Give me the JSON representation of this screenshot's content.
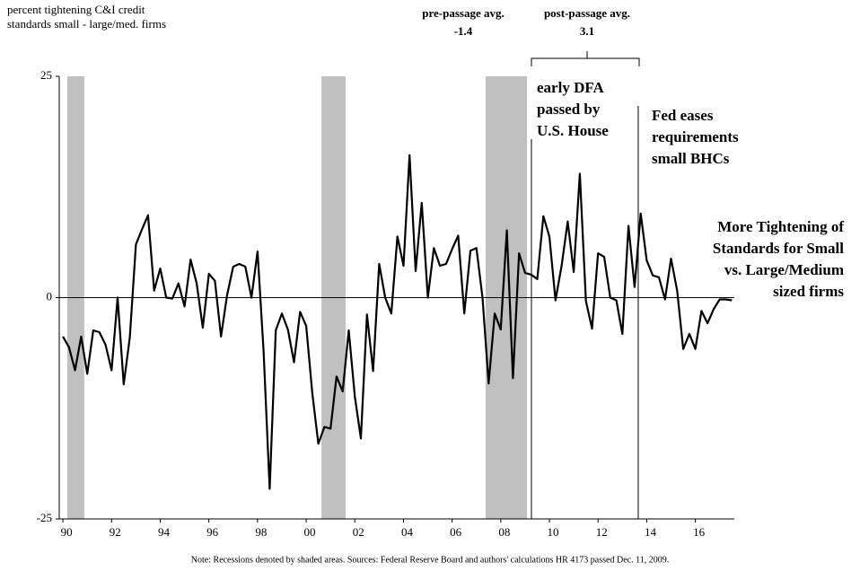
{
  "chart_data": {
    "type": "line",
    "y_label": [
      "percent tightening C&I credit",
      "standards small - large/med. firms"
    ],
    "note": "Note: Recessions denoted by shaded areas. Sources: Federal Reserve Board and authors' calculations   HR 4173 passed Dec. 11, 2009.",
    "annotations": [
      {
        "lines": [
          "pre-passage avg.",
          "-1.4"
        ]
      },
      {
        "lines": [
          "post-passage avg.",
          "3.1"
        ]
      },
      {
        "lines": [
          "early DFA",
          "passed by",
          "U.S. House"
        ]
      },
      {
        "lines": [
          "Fed eases",
          "requirements",
          "small BHCs"
        ]
      },
      {
        "lines": [
          "More Tightening of",
          "Standards for Small",
          "vs. Large/Medium",
          "sized firms"
        ]
      }
    ],
    "recessions": [
      [
        1990.18,
        1990.88
      ],
      [
        2000.63,
        2001.62
      ],
      [
        2007.38,
        2009.08
      ]
    ],
    "recession_color": "#c0c0c0",
    "vlines": [
      2009.26,
      2013.65
    ],
    "x": [
      1990,
      1990.25,
      1990.5,
      1990.75,
      1991,
      1991.25,
      1991.5,
      1991.75,
      1992,
      1992.25,
      1992.5,
      1992.75,
      1993,
      1993.25,
      1993.5,
      1993.75,
      1994,
      1994.25,
      1994.5,
      1994.75,
      1995,
      1995.25,
      1995.5,
      1995.75,
      1996,
      1996.25,
      1996.5,
      1996.75,
      1997,
      1997.25,
      1997.5,
      1997.75,
      1998,
      1998.25,
      1998.5,
      1998.75,
      1999,
      1999.25,
      1999.5,
      1999.75,
      2000,
      2000.25,
      2000.5,
      2000.75,
      2001,
      2001.25,
      2001.5,
      2001.75,
      2002,
      2002.25,
      2002.5,
      2002.75,
      2003,
      2003.25,
      2003.5,
      2003.75,
      2004,
      2004.25,
      2004.5,
      2004.75,
      2005,
      2005.25,
      2005.5,
      2005.75,
      2006,
      2006.25,
      2006.5,
      2006.75,
      2007,
      2007.25,
      2007.5,
      2007.75,
      2008,
      2008.25,
      2008.5,
      2008.75,
      2009,
      2009.25,
      2009.5,
      2009.75,
      2010,
      2010.25,
      2010.5,
      2010.75,
      2011,
      2011.25,
      2011.5,
      2011.75,
      2012,
      2012.25,
      2012.5,
      2012.75,
      2013,
      2013.25,
      2013.5,
      2013.75,
      2014,
      2014.25,
      2014.5,
      2014.75,
      2015,
      2015.25,
      2015.5,
      2015.75,
      2016,
      2016.25,
      2016.5,
      2016.75,
      2017,
      2017.25,
      2017.5
    ],
    "series": [
      {
        "name": "tightening",
        "color": "#000000",
        "values": [
          -4.4,
          -5.6,
          -8.2,
          -4.4,
          -8.6,
          -3.7,
          -3.9,
          -5.3,
          -8.2,
          0,
          -9.8,
          -4.5,
          6,
          7.7,
          9.3,
          0.8,
          3.3,
          0,
          -0.1,
          1.6,
          -1,
          4.3,
          1.6,
          -3.4,
          2.7,
          1.9,
          -4.4,
          0.3,
          3.5,
          3.8,
          3.5,
          0,
          5.2,
          -6,
          -21.6,
          -3.7,
          -1.8,
          -3.6,
          -7.3,
          -1.6,
          -3.2,
          -10.7,
          -16.5,
          -14.6,
          -14.8,
          -8.9,
          -10.6,
          -3.7,
          -11.2,
          -15.9,
          -1.9,
          -8.3,
          3.8,
          0,
          -1.8,
          6.9,
          3.6,
          16.1,
          3,
          10.7,
          0,
          5.6,
          3.6,
          3.8,
          5.5,
          7,
          -1.8,
          5.3,
          5.6,
          0,
          -9.7,
          -1.8,
          -3.6,
          7.6,
          -9.1,
          5,
          2.8,
          2.6,
          2.1,
          9.2,
          6.9,
          -0.3,
          3.6,
          8.6,
          2.9,
          14,
          -0.4,
          -3.5,
          5,
          4.6,
          0,
          -0.3,
          -4.1,
          8.1,
          1.2,
          9.5,
          4.2,
          2.5,
          2.3,
          -0.2,
          4.4,
          0.8,
          -5.8,
          -4.1,
          -5.8,
          -1.5,
          -2.9,
          -1.3,
          -0.2,
          -0.2,
          -0.3
        ]
      }
    ],
    "xlim": [
      1989.85,
      2017.6
    ],
    "xticks": [
      {
        "value": 1990,
        "label": "90"
      },
      {
        "value": 1992,
        "label": "92"
      },
      {
        "value": 1994,
        "label": "94"
      },
      {
        "value": 1996,
        "label": "96"
      },
      {
        "value": 1998,
        "label": "98"
      },
      {
        "value": 2000,
        "label": "00"
      },
      {
        "value": 2002,
        "label": "02"
      },
      {
        "value": 2004,
        "label": "04"
      },
      {
        "value": 2006,
        "label": "06"
      },
      {
        "value": 2008,
        "label": "08"
      },
      {
        "value": 2010,
        "label": "10"
      },
      {
        "value": 2012,
        "label": "12"
      },
      {
        "value": 2014,
        "label": "14"
      },
      {
        "value": 2016,
        "label": "16"
      }
    ],
    "ylim": [
      -25,
      25
    ],
    "yticks": [
      -25,
      0,
      25
    ]
  }
}
